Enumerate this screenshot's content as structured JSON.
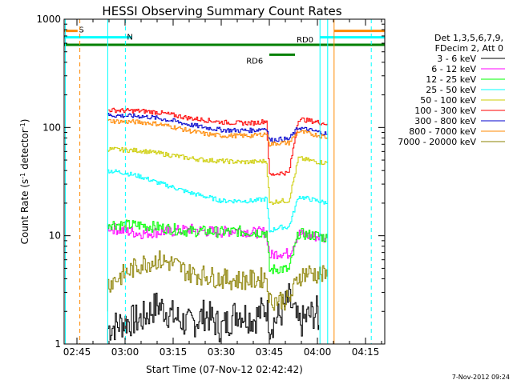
{
  "chart_data": {
    "type": "line",
    "title": "HESSI Observing Summary Count Rates",
    "xlabel": "Start Time (07-Nov-12 02:42:42)",
    "ylabel_main": "Count Rate (s",
    "ylabel_sup1": "-1",
    "ylabel_mid": " detector",
    "ylabel_sup2": "-1",
    "ylabel_end": ")",
    "xlim": [
      161.0,
      261.0
    ],
    "ylim": [
      1,
      1000
    ],
    "yscale": "log",
    "grid": false,
    "x_ticks": [
      {
        "value": 165,
        "label": "02:45"
      },
      {
        "value": 180,
        "label": "03:00"
      },
      {
        "value": 195,
        "label": "03:15"
      },
      {
        "value": 210,
        "label": "03:30"
      },
      {
        "value": 225,
        "label": "03:45"
      },
      {
        "value": 240,
        "label": "04:00"
      },
      {
        "value": 255,
        "label": "04:15"
      }
    ],
    "y_ticks": [
      {
        "value": 1,
        "label": "1"
      },
      {
        "value": 10,
        "label": "10"
      },
      {
        "value": 100,
        "label": "100"
      },
      {
        "value": 1000,
        "label": "1000"
      }
    ],
    "legend_header": [
      "Det 1,3,5,6,7,9,",
      "FDecim 2, Att 0"
    ],
    "legend_position": "right",
    "series": [
      {
        "name": "3 - 6 keV",
        "color": "#000000",
        "x": [
          174.6,
          180,
          185,
          190,
          195,
          200,
          205,
          210,
          215,
          220,
          224,
          225,
          228,
          231,
          234,
          237,
          240,
          240.4
        ],
        "y": [
          1.4,
          1.6,
          1.7,
          2.3,
          1.8,
          1.5,
          1.9,
          1.4,
          2.0,
          1.7,
          2.2,
          1.5,
          1.8,
          2.6,
          1.5,
          1.8,
          2.0,
          1.5
        ]
      },
      {
        "name": "6 - 12 keV",
        "color": "#ff00ff",
        "x": [
          174.6,
          180,
          185,
          190,
          195,
          200,
          205,
          210,
          215,
          220,
          224,
          225,
          228,
          231,
          234,
          237,
          240,
          243
        ],
        "y": [
          12,
          11,
          10.5,
          10.8,
          11,
          11.5,
          11,
          10.8,
          11.3,
          10.7,
          10.8,
          6.5,
          7,
          6.8,
          10.5,
          10,
          9.8,
          9.5
        ]
      },
      {
        "name": "12 - 25 keV",
        "color": "#00ff00",
        "x": [
          174.6,
          180,
          185,
          190,
          195,
          200,
          205,
          210,
          215,
          220,
          224,
          225,
          228,
          231,
          234,
          237,
          240,
          243
        ],
        "y": [
          13,
          12.5,
          12.5,
          12,
          11.5,
          11,
          11,
          10.8,
          11,
          10.8,
          10.7,
          4.8,
          5,
          4.8,
          10.5,
          10.2,
          10,
          9.5
        ]
      },
      {
        "name": "25 - 50 keV",
        "color": "#00ffff",
        "x": [
          174.6,
          180,
          185,
          190,
          195,
          200,
          205,
          210,
          215,
          220,
          224,
          225,
          228,
          231,
          234,
          237,
          240,
          243
        ],
        "y": [
          40,
          38,
          35,
          31,
          28,
          25,
          23,
          21,
          21,
          21,
          22,
          11,
          12,
          12,
          23,
          22,
          21,
          20
        ]
      },
      {
        "name": "50 - 100 keV",
        "color": "#cccc00",
        "x": [
          174.6,
          180,
          185,
          190,
          195,
          200,
          205,
          210,
          215,
          220,
          224,
          225,
          228,
          231,
          234,
          237,
          240,
          243
        ],
        "y": [
          63,
          62,
          61,
          58,
          55,
          52,
          50,
          49,
          48,
          48,
          49,
          20,
          21,
          21,
          52,
          50,
          48,
          47
        ]
      },
      {
        "name": "100 - 300 keV",
        "color": "#ff0000",
        "x": [
          174.6,
          180,
          185,
          190,
          195,
          200,
          205,
          210,
          215,
          220,
          224,
          225,
          228,
          231,
          234,
          237,
          240,
          243
        ],
        "y": [
          145,
          143,
          142,
          138,
          130,
          122,
          117,
          112,
          110,
          110,
          115,
          36,
          38,
          38,
          120,
          116,
          112,
          108
        ]
      },
      {
        "name": "300 - 800 keV",
        "color": "#0000cc",
        "x": [
          174.6,
          180,
          185,
          190,
          195,
          200,
          205,
          210,
          215,
          220,
          224,
          225,
          228,
          231,
          234,
          237,
          240,
          243
        ],
        "y": [
          130,
          128,
          127,
          122,
          115,
          106,
          100,
          95,
          94,
          94,
          99,
          76,
          78,
          78,
          100,
          95,
          91,
          87
        ]
      },
      {
        "name": "800 - 7000 keV",
        "color": "#ff8800",
        "x": [
          174.6,
          180,
          185,
          190,
          195,
          200,
          205,
          210,
          215,
          220,
          224,
          225,
          228,
          231,
          234,
          237,
          240,
          243
        ],
        "y": [
          115,
          113,
          112,
          108,
          101,
          93,
          87,
          84,
          84,
          84,
          88,
          70,
          72,
          72,
          92,
          88,
          85,
          81
        ]
      },
      {
        "name": "7000 - 20000 keV",
        "color": "#8b8000",
        "x": [
          174.6,
          180,
          185,
          190,
          195,
          200,
          205,
          210,
          215,
          220,
          224,
          225,
          228,
          231,
          234,
          237,
          240,
          243
        ],
        "y": [
          3.6,
          4.5,
          5.5,
          6.0,
          5.5,
          4.5,
          4.3,
          4.0,
          3.9,
          3.9,
          4.2,
          2.5,
          2.6,
          2.5,
          4.2,
          4.6,
          4.4,
          4.2
        ]
      }
    ],
    "vlines": [
      {
        "x": 161.4,
        "color": "#00ffff",
        "dash": false
      },
      {
        "x": 165.9,
        "color": "#ff8800",
        "dash": true
      },
      {
        "x": 174.6,
        "color": "#00ffff",
        "dash": false
      },
      {
        "x": 180.1,
        "color": "#00ffff",
        "dash": true
      },
      {
        "x": 240.8,
        "color": "#00ffff",
        "dash": false
      },
      {
        "x": 243.2,
        "color": "#00ffff",
        "dash": false
      },
      {
        "x": 245.2,
        "color": "#ff8800",
        "dash": false
      },
      {
        "x": 256.8,
        "color": "#00ffff",
        "dash": true
      }
    ],
    "flag_bars": [
      {
        "label": "S",
        "color": "#ff8800",
        "level": 780,
        "segments": [
          [
            161.0,
            165.2
          ],
          [
            245.2,
            261.0
          ]
        ]
      },
      {
        "label": "N",
        "color": "#00ffff",
        "level": 680,
        "segments": [
          [
            161.0,
            182.0
          ],
          [
            240.8,
            261.0
          ]
        ]
      },
      {
        "label": "RD0",
        "color": "#008000",
        "level": 580,
        "segments": [
          [
            161.0,
            261.0
          ]
        ]
      },
      {
        "label": "RD6",
        "color": "#008000",
        "level": 470,
        "segments": [
          [
            225.0,
            233.0
          ]
        ]
      }
    ],
    "timestamp": "7-Nov-2012 09:24"
  }
}
